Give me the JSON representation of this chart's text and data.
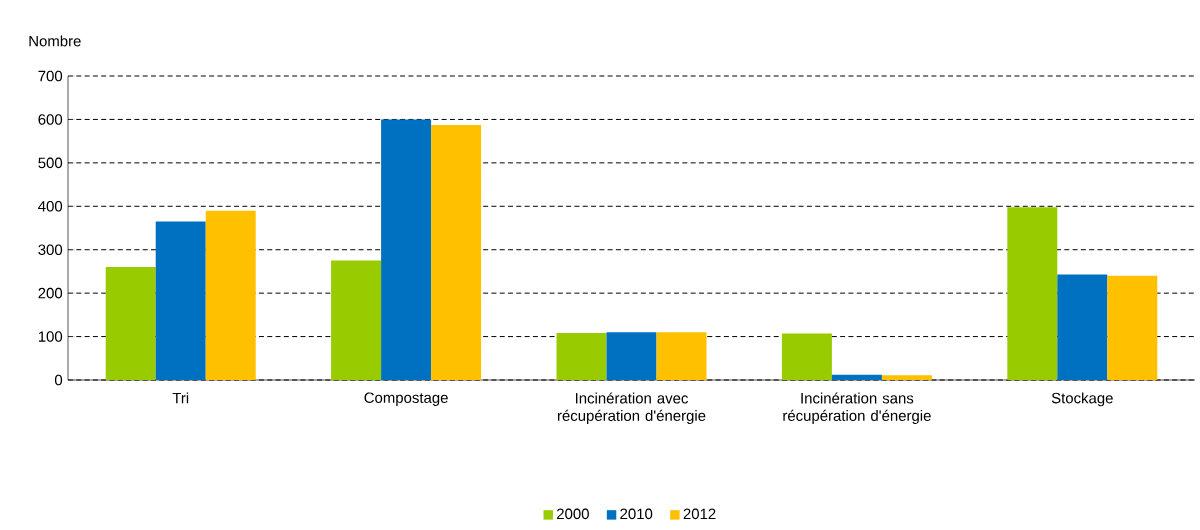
{
  "chart_data": {
    "type": "bar",
    "ylabel": "Nombre",
    "categories": [
      "Tri",
      "Compostage",
      "Incinération avec récupération d'énergie",
      "Incinération sans récupération d'énergie",
      "Stockage"
    ],
    "series": [
      {
        "name": "2000",
        "color": "#99cc00",
        "values": [
          260,
          275,
          108,
          107,
          398
        ]
      },
      {
        "name": "2010",
        "color": "#0070c0",
        "values": [
          365,
          600,
          110,
          12,
          243
        ]
      },
      {
        "name": "2012",
        "color": "#ffc000",
        "values": [
          390,
          587,
          110,
          11,
          240
        ]
      }
    ],
    "ylim": [
      0,
      700
    ],
    "yticks": [
      0,
      100,
      200,
      300,
      400,
      500,
      600,
      700
    ],
    "grid": "y",
    "legend": "bottom"
  }
}
